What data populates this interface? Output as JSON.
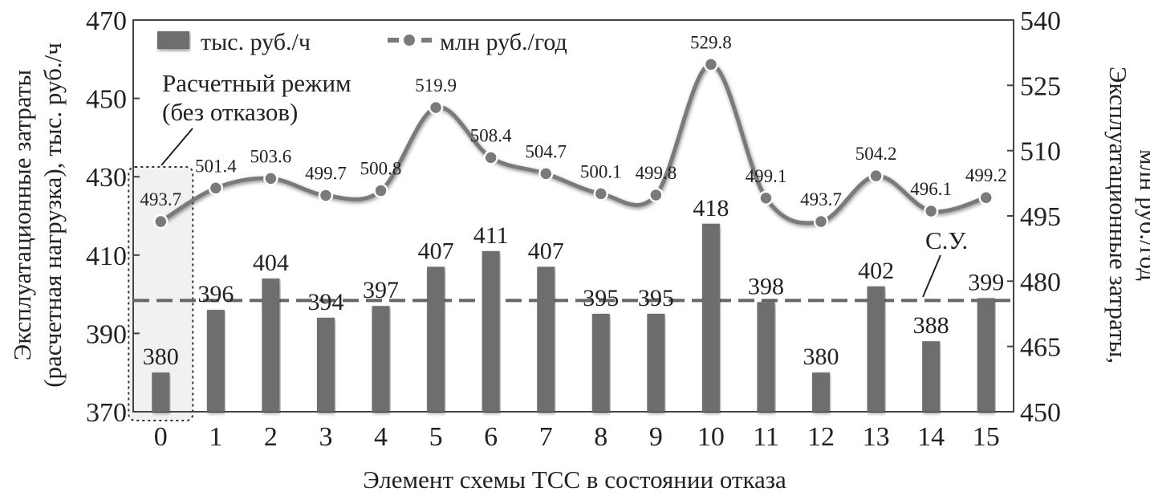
{
  "chart_data": {
    "type": "bar+line",
    "categories": [
      "0",
      "1",
      "2",
      "3",
      "4",
      "5",
      "6",
      "7",
      "8",
      "9",
      "10",
      "11",
      "12",
      "13",
      "14",
      "15"
    ],
    "bar_series": {
      "name": "тыс. руб./ч",
      "axis": "left",
      "values": [
        380,
        396,
        404,
        394,
        397,
        407,
        411,
        407,
        395,
        395,
        418,
        398,
        380,
        402,
        388,
        399
      ],
      "color": "#6e6e6e"
    },
    "line_series": {
      "name": "млн руб./год",
      "axis": "right",
      "values": [
        493.7,
        501.4,
        503.6,
        499.7,
        500.8,
        519.9,
        508.4,
        504.7,
        500.1,
        499.8,
        529.8,
        499.1,
        493.7,
        504.2,
        496.1,
        499.2
      ],
      "color": "#7a7a7a"
    },
    "reference_line": {
      "label": "С.У.",
      "value": 398.4,
      "axis": "left",
      "style": "dashed"
    },
    "annotation": {
      "line1": "Расчетный режим",
      "line2": "(без отказов)",
      "target_category": "0"
    },
    "xlabel": "Элемент схемы ТСС в состоянии отказа",
    "ylabel_left": {
      "line1": "Эксплуатационные затраты",
      "line2": "(расчетная нагрузка), тыс. руб./ч"
    },
    "ylabel_right": {
      "line1": "Эксплуатационные затраты,",
      "line2": "млн руб./год"
    },
    "ylim_left": [
      370,
      470
    ],
    "yticks_left": [
      370,
      390,
      410,
      430,
      450,
      470
    ],
    "ylim_right": [
      450,
      540
    ],
    "yticks_right": [
      450,
      465,
      480,
      495,
      510,
      525,
      540
    ],
    "legend_position": "top-left",
    "grid": false
  }
}
